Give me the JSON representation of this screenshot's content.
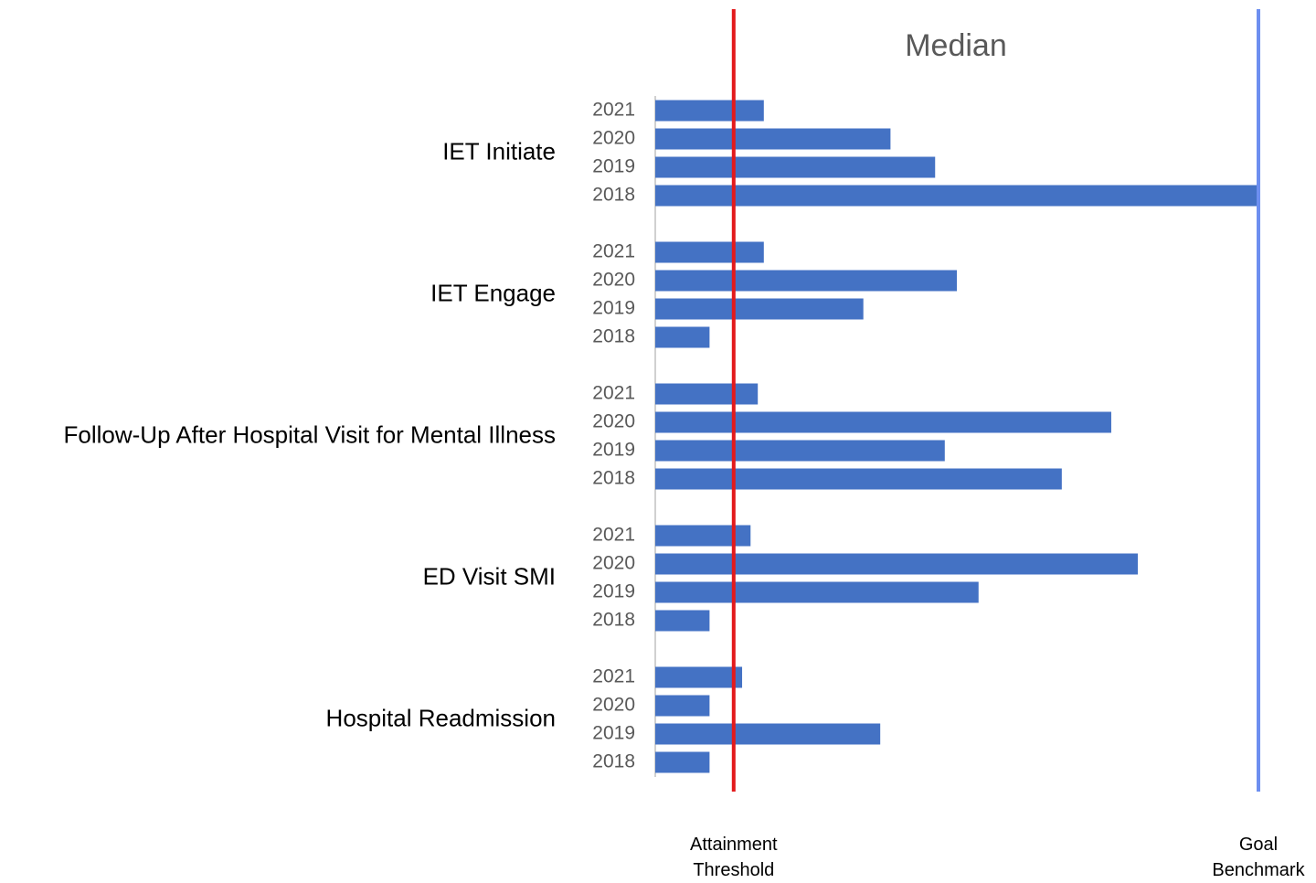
{
  "chart_data": {
    "type": "bar",
    "orientation": "horizontal",
    "title": "Median",
    "categories": [
      "IET Initiate",
      "IET Engage",
      "Follow-Up After Hospital Visit for Mental Illness",
      "ED Visit SMI",
      "Hospital Readmission"
    ],
    "series": [
      {
        "name": "2021",
        "color": "#4472c4",
        "values": [
          18,
          18,
          17,
          15.8,
          14.4
        ]
      },
      {
        "name": "2020",
        "color": "#4472c4",
        "values": [
          39,
          50,
          75.6,
          80,
          9
        ]
      },
      {
        "name": "2019",
        "color": "#4472c4",
        "values": [
          46.4,
          34.5,
          48,
          53.6,
          37.3
        ]
      },
      {
        "name": "2018",
        "color": "#4472c4",
        "values": [
          100,
          9,
          67.4,
          9,
          9
        ]
      }
    ],
    "xlim": [
      0,
      100
    ],
    "reference_lines": [
      {
        "label": "Attainment Threshold",
        "value": 13,
        "color": "#e31a1c"
      },
      {
        "label": "Goal Benchmark",
        "value": 100,
        "color": "#6d8ff0"
      }
    ]
  }
}
